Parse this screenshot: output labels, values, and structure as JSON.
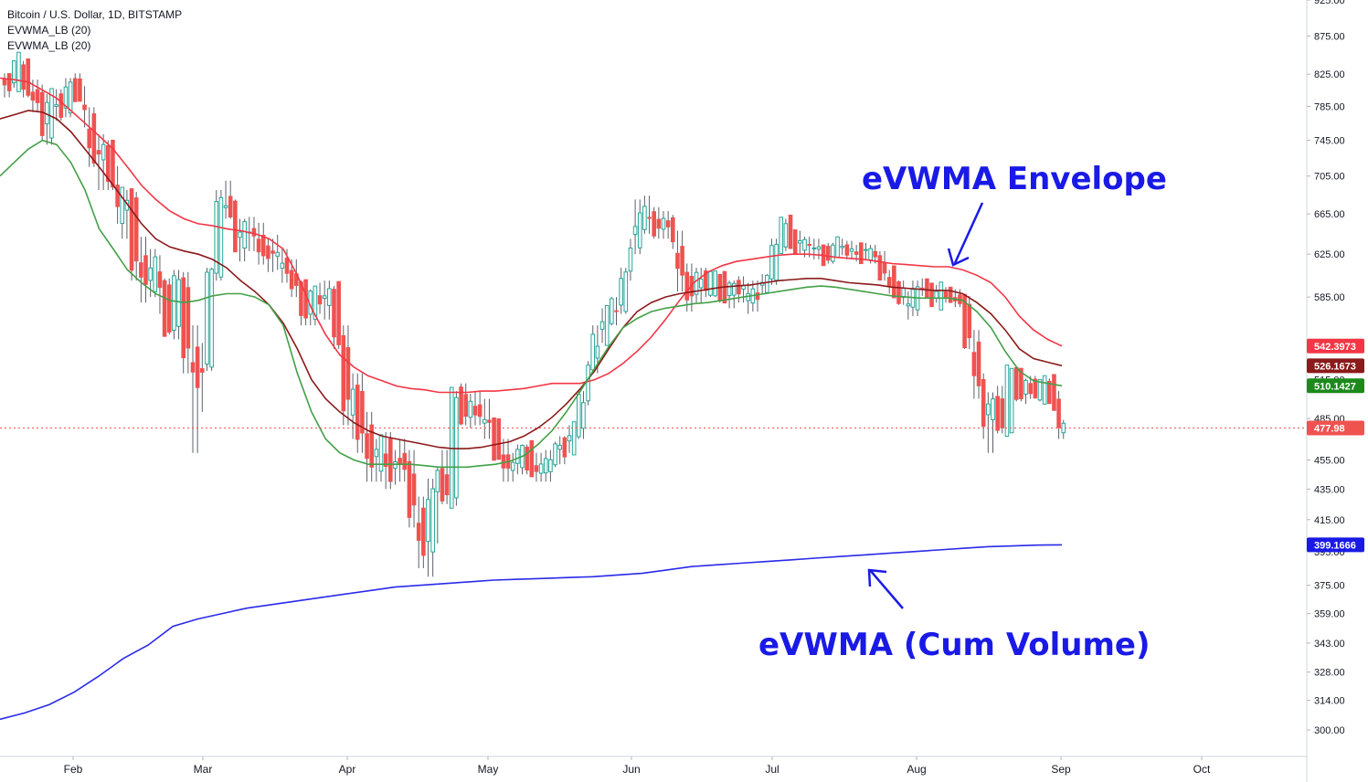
{
  "legend": {
    "symbol": "Bitcoin / U.S. Dollar, 1D, BITSTAMP",
    "indicator1": "EVWMA_LB (20)",
    "indicator2": "EVWMA_LB (20)"
  },
  "annotations": {
    "envelope": "eVWMA Envelope",
    "cum_volume": "eVWMA (Cum Volume)"
  },
  "chart_data": {
    "type": "candlestick",
    "x_axis": {
      "tick_labels": [
        "Feb",
        "Mar",
        "Apr",
        "May",
        "Jun",
        "Jul",
        "Aug",
        "Sep",
        "Oct"
      ],
      "range": [
        "Jan 24",
        "Oct 15"
      ]
    },
    "y_axis": {
      "scale": "log",
      "range": [
        288,
        925
      ],
      "tick_labels": [
        "925.00",
        "875.00",
        "825.00",
        "785.00",
        "745.00",
        "705.00",
        "665.00",
        "625.00",
        "585.00",
        "545.00",
        "515.00",
        "485.00",
        "455.00",
        "435.00",
        "415.00",
        "395.00",
        "375.00",
        "359.00",
        "343.00",
        "328.00",
        "314.00",
        "300.00"
      ]
    },
    "candles_ohlc": [
      [
        812,
        826,
        796,
        818
      ],
      [
        818,
        843,
        808,
        838
      ],
      [
        838,
        842,
        796,
        805
      ],
      [
        805,
        818,
        778,
        790
      ],
      [
        790,
        812,
        745,
        762
      ],
      [
        762,
        800,
        740,
        792
      ],
      [
        792,
        806,
        768,
        780
      ],
      [
        780,
        820,
        772,
        812
      ],
      [
        812,
        826,
        795,
        798
      ],
      [
        798,
        810,
        760,
        770
      ],
      [
        770,
        784,
        715,
        725
      ],
      [
        725,
        752,
        690,
        738
      ],
      [
        738,
        745,
        690,
        700
      ],
      [
        700,
        716,
        655,
        668
      ],
      [
        668,
        690,
        640,
        680
      ],
      [
        680,
        688,
        600,
        620
      ],
      [
        620,
        642,
        580,
        600
      ],
      [
        600,
        630,
        585,
        612
      ],
      [
        612,
        624,
        570,
        590
      ],
      [
        590,
        602,
        552,
        560
      ],
      [
        560,
        610,
        548,
        600
      ],
      [
        600,
        608,
        520,
        535
      ],
      [
        535,
        560,
        460,
        515
      ],
      [
        515,
        545,
        490,
        530
      ],
      [
        530,
        612,
        522,
        605
      ],
      [
        605,
        690,
        600,
        680
      ],
      [
        680,
        700,
        660,
        665
      ],
      [
        665,
        680,
        632,
        640
      ],
      [
        640,
        660,
        618,
        648
      ],
      [
        648,
        662,
        628,
        645
      ],
      [
        645,
        656,
        615,
        622
      ],
      [
        622,
        640,
        608,
        632
      ],
      [
        632,
        644,
        610,
        618
      ],
      [
        618,
        630,
        598,
        610
      ],
      [
        610,
        620,
        585,
        592
      ],
      [
        592,
        600,
        560,
        575
      ],
      [
        575,
        592,
        560,
        585
      ],
      [
        585,
        598,
        570,
        580
      ],
      [
        580,
        600,
        565,
        590
      ],
      [
        590,
        595,
        540,
        552
      ],
      [
        552,
        560,
        480,
        490
      ],
      [
        490,
        520,
        470,
        505
      ],
      [
        505,
        520,
        460,
        475
      ],
      [
        475,
        490,
        440,
        455
      ],
      [
        455,
        470,
        440,
        465
      ],
      [
        465,
        475,
        435,
        445
      ],
      [
        445,
        462,
        438,
        458
      ],
      [
        458,
        470,
        440,
        450
      ],
      [
        450,
        462,
        410,
        420
      ],
      [
        420,
        430,
        385,
        395
      ],
      [
        395,
        442,
        380,
        435
      ],
      [
        435,
        450,
        400,
        446
      ],
      [
        446,
        462,
        425,
        430
      ],
      [
        430,
        506,
        424,
        500
      ],
      [
        500,
        512,
        480,
        490
      ],
      [
        490,
        504,
        478,
        494
      ],
      [
        494,
        506,
        480,
        488
      ],
      [
        488,
        500,
        470,
        478
      ],
      [
        478,
        484,
        455,
        462
      ],
      [
        462,
        470,
        440,
        446
      ],
      [
        446,
        460,
        440,
        455
      ],
      [
        455,
        466,
        445,
        460
      ],
      [
        460,
        466,
        445,
        452
      ],
      [
        452,
        460,
        440,
        446
      ],
      [
        446,
        462,
        440,
        456
      ],
      [
        456,
        468,
        450,
        462
      ],
      [
        462,
        472,
        452,
        466
      ],
      [
        466,
        480,
        460,
        475
      ],
      [
        475,
        506,
        470,
        500
      ],
      [
        500,
        530,
        495,
        525
      ],
      [
        525,
        560,
        520,
        550
      ],
      [
        550,
        575,
        545,
        570
      ],
      [
        570,
        585,
        560,
        575
      ],
      [
        575,
        612,
        570,
        605
      ],
      [
        605,
        640,
        600,
        635
      ],
      [
        635,
        680,
        625,
        662
      ],
      [
        662,
        684,
        645,
        660
      ],
      [
        660,
        672,
        640,
        650
      ],
      [
        650,
        668,
        640,
        660
      ],
      [
        660,
        664,
        630,
        638
      ],
      [
        638,
        648,
        590,
        600
      ],
      [
        600,
        616,
        572,
        590
      ],
      [
        590,
        612,
        580,
        605
      ],
      [
        605,
        612,
        585,
        595
      ],
      [
        595,
        608,
        585,
        600
      ],
      [
        600,
        604,
        580,
        588
      ],
      [
        588,
        600,
        575,
        596
      ],
      [
        596,
        604,
        580,
        592
      ],
      [
        592,
        598,
        570,
        578
      ],
      [
        578,
        600,
        572,
        594
      ],
      [
        594,
        606,
        588,
        600
      ],
      [
        600,
        640,
        596,
        635
      ],
      [
        635,
        660,
        628,
        652
      ],
      [
        652,
        656,
        636,
        642
      ],
      [
        642,
        648,
        626,
        632
      ],
      [
        632,
        642,
        622,
        636
      ],
      [
        636,
        640,
        620,
        626
      ],
      [
        626,
        634,
        614,
        622
      ],
      [
        622,
        636,
        616,
        630
      ],
      [
        630,
        640,
        624,
        634
      ],
      [
        634,
        638,
        620,
        624
      ],
      [
        624,
        634,
        618,
        628
      ],
      [
        628,
        636,
        620,
        630
      ],
      [
        630,
        634,
        616,
        620
      ],
      [
        620,
        628,
        600,
        604
      ],
      [
        604,
        610,
        588,
        594
      ],
      [
        594,
        600,
        578,
        584
      ],
      [
        584,
        590,
        565,
        572
      ],
      [
        572,
        600,
        568,
        596
      ],
      [
        596,
        602,
        586,
        590
      ],
      [
        590,
        596,
        580,
        584
      ],
      [
        584,
        592,
        578,
        588
      ],
      [
        588,
        594,
        580,
        586
      ],
      [
        586,
        592,
        576,
        580
      ],
      [
        580,
        586,
        540,
        548
      ],
      [
        548,
        556,
        500,
        508
      ],
      [
        508,
        520,
        470,
        486
      ],
      [
        486,
        505,
        460,
        498
      ],
      [
        498,
        510,
        474,
        480
      ],
      [
        480,
        524,
        476,
        518
      ],
      [
        518,
        524,
        498,
        506
      ],
      [
        506,
        516,
        496,
        512
      ],
      [
        512,
        518,
        500,
        504
      ],
      [
        504,
        514,
        498,
        510
      ],
      [
        510,
        516,
        496,
        500
      ],
      [
        500,
        506,
        470,
        478
      ],
      [
        478,
        484,
        470,
        477.98
      ]
    ],
    "series": [
      {
        "name": "EVWMA_LB (20) upper",
        "color": "#f23645",
        "last_value": 542.3973,
        "values": [
          820,
          818,
          815,
          805,
          795,
          780,
          765,
          750,
          735,
          715,
          695,
          680,
          668,
          660,
          655,
          653,
          650,
          648,
          645,
          640,
          630,
          605,
          575,
          552,
          535,
          525,
          518,
          514,
          510,
          508,
          507,
          505,
          505,
          505,
          506,
          506,
          507,
          508,
          510,
          512,
          512,
          512,
          515,
          520,
          528,
          538,
          550,
          565,
          582,
          598,
          608,
          614,
          618,
          620,
          622,
          624,
          625,
          625,
          624,
          622,
          621,
          620,
          618,
          616,
          615,
          614,
          613,
          613,
          610,
          605,
          598,
          585,
          568,
          556,
          548,
          542.3973
        ]
      },
      {
        "name": "EVWMA_LB (20) basis",
        "color": "#8b1a1a",
        "last_value": 526.1673,
        "values": [
          770,
          775,
          780,
          778,
          770,
          755,
          735,
          715,
          695,
          675,
          655,
          640,
          632,
          628,
          625,
          620,
          612,
          600,
          590,
          578,
          562,
          540,
          515,
          500,
          490,
          482,
          476,
          472,
          470,
          468,
          466,
          464,
          463,
          463,
          464,
          466,
          468,
          472,
          478,
          486,
          496,
          508,
          522,
          540,
          558,
          572,
          580,
          585,
          588,
          590,
          592,
          594,
          595,
          596,
          598,
          600,
          601,
          602,
          602,
          600,
          598,
          597,
          596,
          594,
          593,
          592,
          591,
          591,
          588,
          580,
          570,
          556,
          540,
          532,
          529,
          526.1673
        ]
      },
      {
        "name": "EVWMA_LB (20) lower",
        "color": "#43a047",
        "last_value": 510.1427,
        "values": [
          705,
          720,
          735,
          745,
          740,
          720,
          690,
          650,
          630,
          610,
          598,
          588,
          582,
          580,
          582,
          586,
          588,
          588,
          585,
          578,
          560,
          520,
          490,
          470,
          460,
          455,
          452,
          452,
          452,
          452,
          451,
          450,
          450,
          450,
          451,
          452,
          454,
          458,
          466,
          476,
          490,
          506,
          524,
          542,
          558,
          566,
          572,
          575,
          577,
          579,
          580,
          582,
          584,
          586,
          588,
          590,
          592,
          594,
          595,
          594,
          592,
          590,
          588,
          586,
          585,
          584,
          584,
          584,
          582,
          572,
          558,
          538,
          522,
          514,
          512,
          510.1427
        ]
      },
      {
        "name": "eVWMA (Cum Volume)",
        "color": "#2a2ae8",
        "last_value": 399.1666,
        "values": [
          305,
          308,
          312,
          318,
          326,
          335,
          342,
          352,
          356,
          359,
          362,
          364,
          366,
          368,
          370,
          372,
          374,
          375,
          376,
          377,
          378,
          378.5,
          379,
          379.5,
          380,
          381,
          382,
          384,
          386,
          387,
          388,
          389,
          390,
          391,
          392,
          393,
          394,
          395,
          396,
          397,
          398,
          398.5,
          399,
          399.1666
        ]
      }
    ],
    "price_labels": [
      {
        "value": "542.3973",
        "color": "#f23645"
      },
      {
        "value": "526.1673",
        "color": "#8b1a1a"
      },
      {
        "value": "510.1427",
        "color": "#1b8a1b"
      },
      {
        "value": "477.98",
        "color": "#ef5350"
      },
      {
        "value": "399.1666",
        "color": "#1a1ae6"
      }
    ],
    "current_price": 477.98,
    "colors": {
      "up": "#26a69a",
      "down": "#ef5350",
      "wick": "#5d606b",
      "axis_text": "#131722",
      "grid": "none"
    }
  }
}
